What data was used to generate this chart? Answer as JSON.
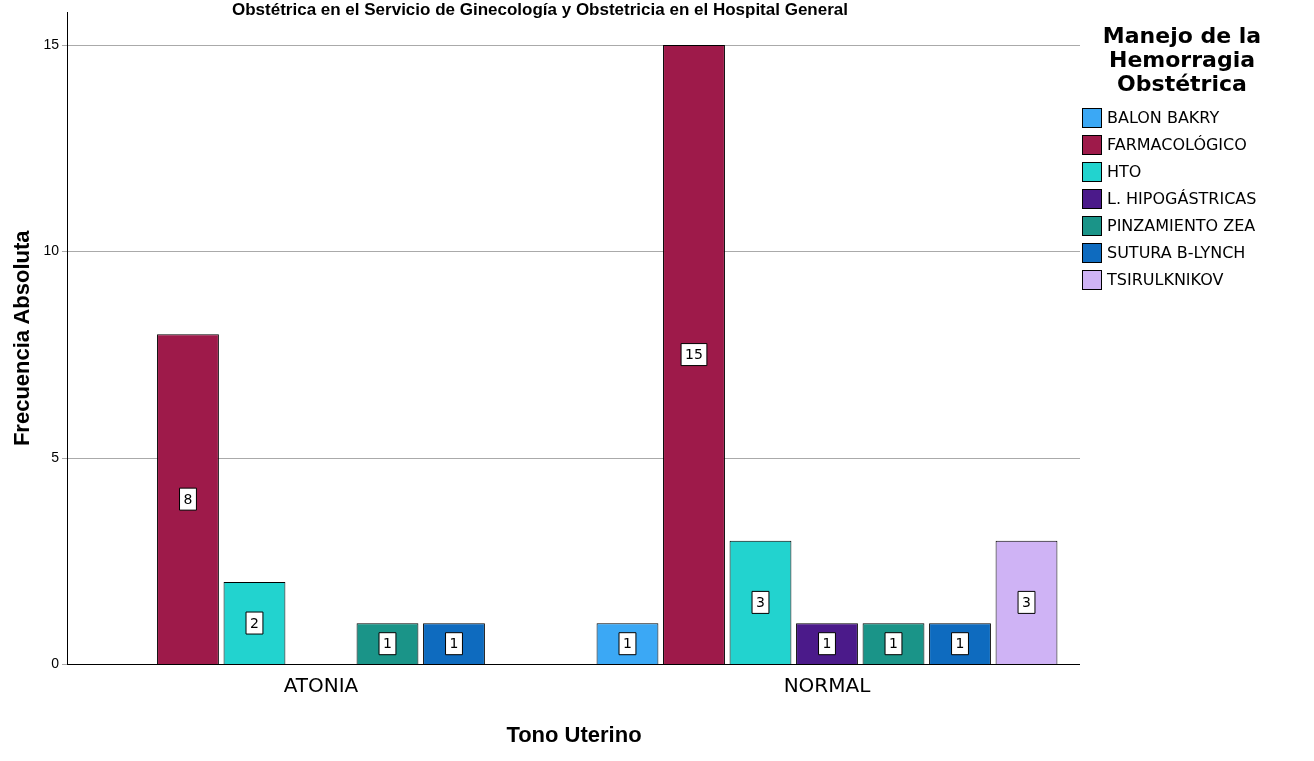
{
  "chart_data": {
    "type": "bar",
    "title": "Obstétrica en el Servicio de Ginecología y Obstetricia en el Hospital General",
    "xlabel": "Tono Uterino",
    "ylabel": "Frecuencia Absoluta",
    "legend_title": "Manejo de la Hemorragia Obstétrica",
    "categories": [
      "ATONIA",
      "NORMAL"
    ],
    "series": [
      {
        "name": "BALON BAKRY",
        "color": "#3ba8f5",
        "values": [
          null,
          1
        ]
      },
      {
        "name": "FARMACOLÓGICO",
        "color": "#9e1a4a",
        "values": [
          8,
          15
        ]
      },
      {
        "name": "HTO",
        "color": "#22d3cf",
        "values": [
          2,
          3
        ]
      },
      {
        "name": "L. HIPOGÁSTRICAS",
        "color": "#4b1a8a",
        "values": [
          null,
          1
        ]
      },
      {
        "name": "PINZAMIENTO ZEA",
        "color": "#1a9488",
        "values": [
          1,
          1
        ]
      },
      {
        "name": "SUTURA B-LYNCH",
        "color": "#0e6bbf",
        "values": [
          1,
          1
        ]
      },
      {
        "name": "TSIRULKNIKOV",
        "color": "#cfb3f5",
        "values": [
          null,
          3
        ]
      }
    ],
    "ylim": [
      0,
      15.8
    ],
    "yticks": [
      0,
      5,
      10,
      15
    ],
    "grid": "y",
    "legend": "top right",
    "data_labels": true
  }
}
